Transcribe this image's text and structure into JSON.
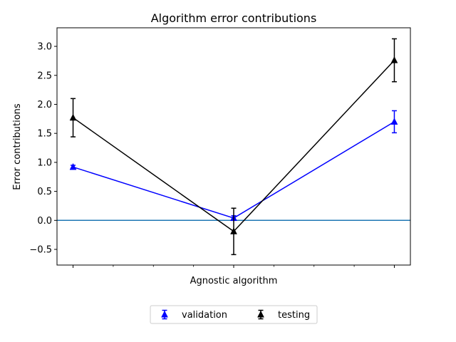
{
  "chart_data": {
    "type": "line",
    "title": "Algorithm error contributions",
    "xlabel": "Agnostic algorithm",
    "ylabel": "Error contributions",
    "x": [
      0,
      2,
      4
    ],
    "xlim": [
      -0.2,
      4.2
    ],
    "ylim": [
      -0.77,
      3.32
    ],
    "yticks": [
      -0.5,
      0.0,
      0.5,
      1.0,
      1.5,
      2.0,
      2.5,
      3.0
    ],
    "ytick_labels": [
      "−0.5",
      "0.0",
      "0.5",
      "1.0",
      "1.5",
      "2.0",
      "2.5",
      "3.0"
    ],
    "xticks_major": [
      0,
      2,
      4
    ],
    "xticks_minor": [
      0.5,
      1,
      1.5,
      2.5,
      3,
      3.5
    ],
    "reference_line": {
      "y": 0.0,
      "color": "#1f77b4"
    },
    "grid": false,
    "legend": {
      "placement": "bottom-center",
      "columns": 2
    },
    "series": [
      {
        "name": "validation",
        "color": "#0000ff",
        "marker": "triangle-up",
        "values": [
          0.92,
          0.04,
          1.7
        ],
        "errors": [
          0.03,
          0.04,
          0.19
        ]
      },
      {
        "name": "testing",
        "color": "#000000",
        "marker": "triangle-up",
        "values": [
          1.77,
          -0.19,
          2.76
        ],
        "errors": [
          0.33,
          0.4,
          0.37
        ]
      }
    ]
  }
}
